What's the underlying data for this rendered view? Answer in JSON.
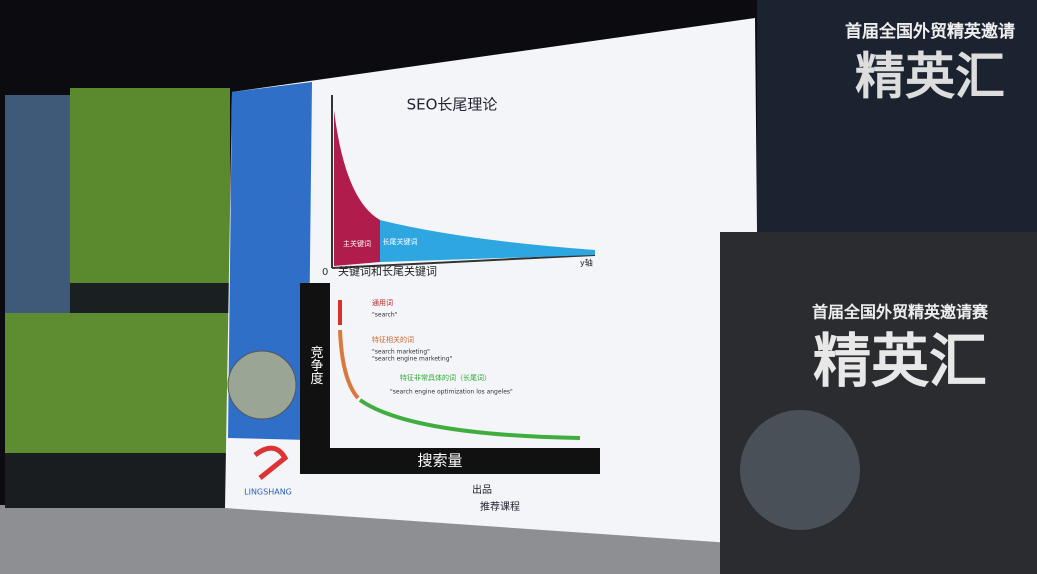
{
  "slide": {
    "title": "SEO长尾理论",
    "top_chart": {
      "x_axis_label": "关键词和长尾关键词",
      "y_axis_end": "y轴",
      "origin": "0",
      "head_label": "主关键词",
      "tail_label": "长尾关键词"
    },
    "bottom_chart": {
      "y_axis_label": "竞争度",
      "x_axis_label": "搜索量",
      "groups": [
        {
          "label": "通用词",
          "example": "\"search\""
        },
        {
          "label": "特征相关的词",
          "example": "\"search marketing\"",
          "example2": "\"search engine marketing\""
        },
        {
          "label": "特征非常具体的词（长尾词）",
          "example": "\"search engine optimization los angeles\""
        }
      ]
    },
    "logo": "LINGSHANG",
    "footer": {
      "producer": "出品",
      "course": "推荐课程"
    }
  },
  "banners": {
    "top_right": {
      "subtitle": "首届全国外贸精英邀请",
      "title": "精英汇"
    },
    "poster": {
      "subtitle": "首届全国外贸精英邀请赛",
      "title": "精英汇"
    }
  }
}
